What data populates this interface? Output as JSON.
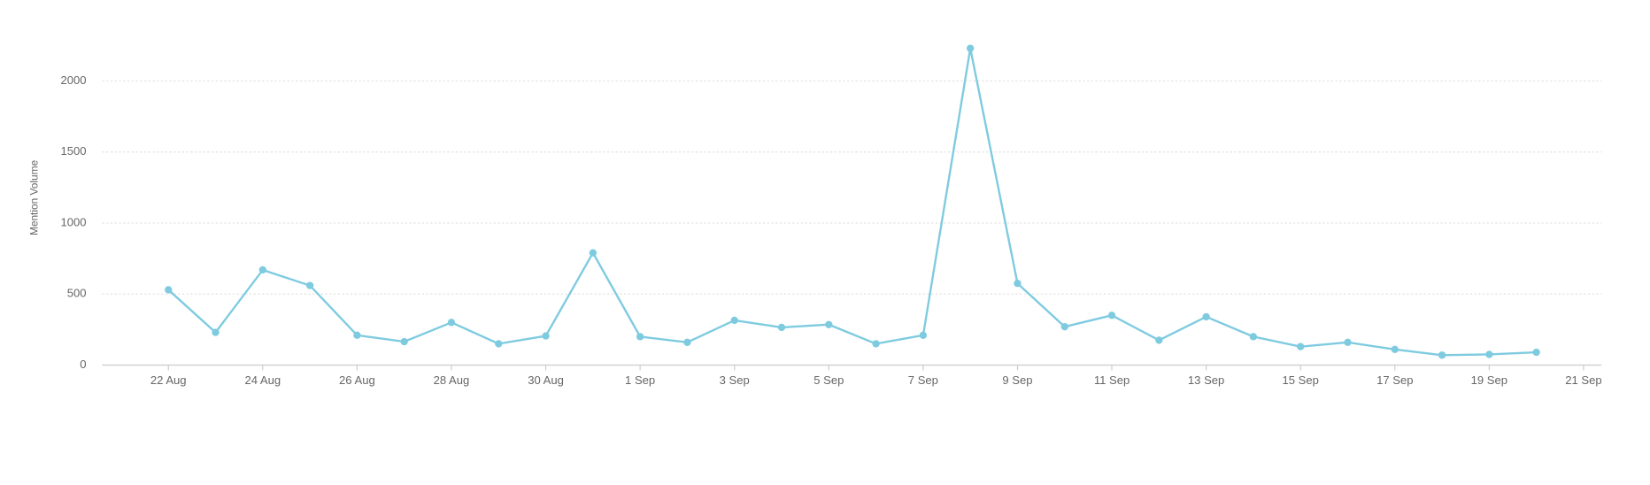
{
  "chart_data": {
    "type": "line",
    "y_label": "Mention Volume",
    "categories": [
      "22 Aug",
      null,
      "24 Aug",
      null,
      "26 Aug",
      null,
      "28 Aug",
      null,
      "30 Aug",
      null,
      "1 Sep",
      null,
      "3 Sep",
      null,
      "5 Sep",
      null,
      "7 Sep",
      null,
      "9 Sep",
      null,
      "11 Sep",
      null,
      "13 Sep",
      null,
      "15 Sep",
      null,
      "17 Sep",
      null,
      "19 Sep",
      null,
      "21 Sep"
    ],
    "values": [
      530,
      230,
      670,
      560,
      210,
      165,
      300,
      150,
      205,
      790,
      200,
      160,
      315,
      265,
      285,
      150,
      210,
      2230,
      575,
      270,
      350,
      175,
      340,
      200,
      130,
      160,
      110,
      70,
      75,
      90,
      null
    ],
    "color": "#7ecbe0",
    "ylim": [
      0,
      2300
    ],
    "yticks": [
      0,
      500,
      1000,
      1500,
      2000
    ],
    "grid": true
  }
}
